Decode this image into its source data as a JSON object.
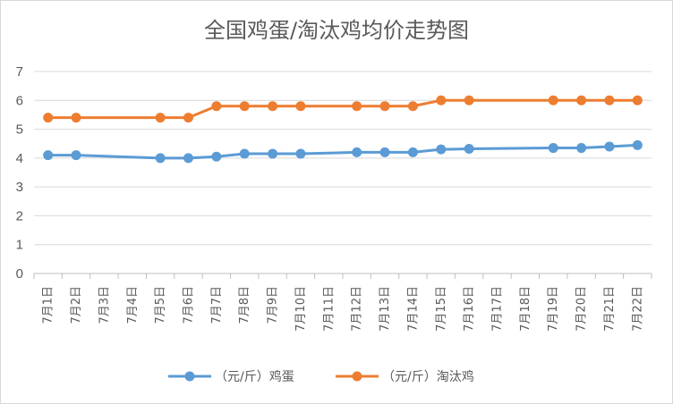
{
  "chart_data": {
    "type": "line",
    "title": "全国鸡蛋/淘汰鸡均价走势图",
    "categories": [
      "7月1日",
      "7月2日",
      "7月3日",
      "7月4日",
      "7月5日",
      "7月6日",
      "7月7日",
      "7月8日",
      "7月9日",
      "7月10日",
      "7月11日",
      "7月12日",
      "7月13日",
      "7月14日",
      "7月15日",
      "7月16日",
      "7月17日",
      "7月18日",
      "7月19日",
      "7月20日",
      "7月21日",
      "7月22日"
    ],
    "ylim": [
      0,
      7
    ],
    "yticks": [
      0,
      1,
      2,
      3,
      4,
      5,
      6,
      7
    ],
    "grid": true,
    "legend": "bottom",
    "series": [
      {
        "name": "（元/斤）鸡蛋",
        "color": "#5B9BD5",
        "values": [
          4.1,
          4.1,
          null,
          null,
          4.0,
          4.0,
          4.05,
          4.15,
          4.15,
          4.15,
          null,
          4.2,
          4.2,
          4.2,
          4.3,
          4.32,
          null,
          null,
          4.35,
          4.35,
          4.4,
          4.45
        ]
      },
      {
        "name": "（元/斤）淘汰鸡",
        "color": "#ED7D31",
        "values": [
          5.4,
          5.4,
          null,
          null,
          5.4,
          5.4,
          5.8,
          5.8,
          5.8,
          5.8,
          null,
          5.8,
          5.8,
          5.8,
          6.0,
          6.0,
          null,
          null,
          6.0,
          6.0,
          6.0,
          6.0
        ]
      }
    ]
  }
}
